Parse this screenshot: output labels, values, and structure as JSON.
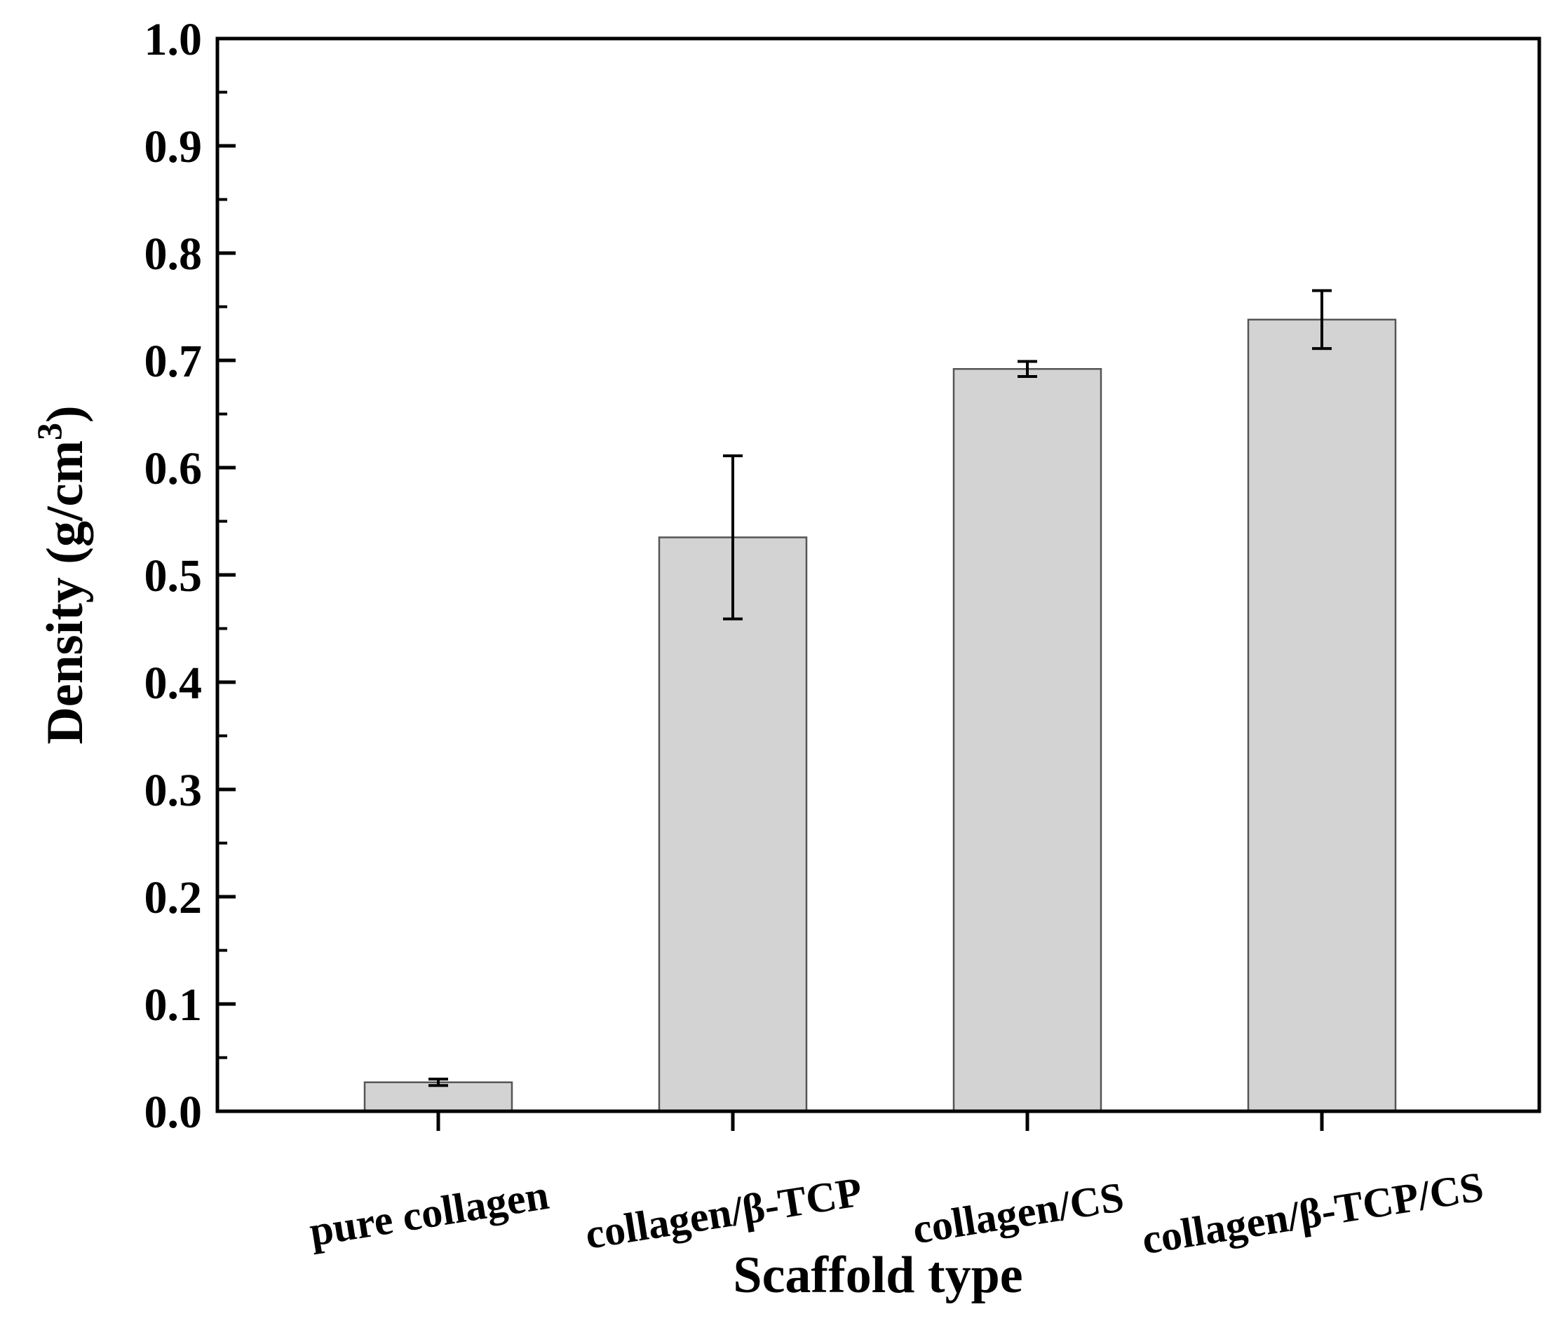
{
  "chart_data": {
    "type": "bar",
    "title": "",
    "xlabel": "Scaffold type",
    "ylabel": {
      "main": "Density (g/cm",
      "superscript": "3",
      "close": ")"
    },
    "ylim": [
      0,
      1.0
    ],
    "yticks": [
      "0.0",
      "0.1",
      "0.2",
      "0.3",
      "0.4",
      "0.5",
      "0.6",
      "0.7",
      "0.8",
      "0.9",
      "1.0"
    ],
    "categories": [
      "pure collagen",
      "collagen/β-TCP",
      "collagen/CS",
      "collagen/β-TCP/CS"
    ],
    "values": [
      0.027,
      0.535,
      0.692,
      0.738
    ],
    "errors": [
      0.003,
      0.076,
      0.007,
      0.027
    ],
    "grid": false,
    "bar_color": "#d3d3d3",
    "bar_edge_color": "#555555",
    "axis_color": "#000000"
  }
}
